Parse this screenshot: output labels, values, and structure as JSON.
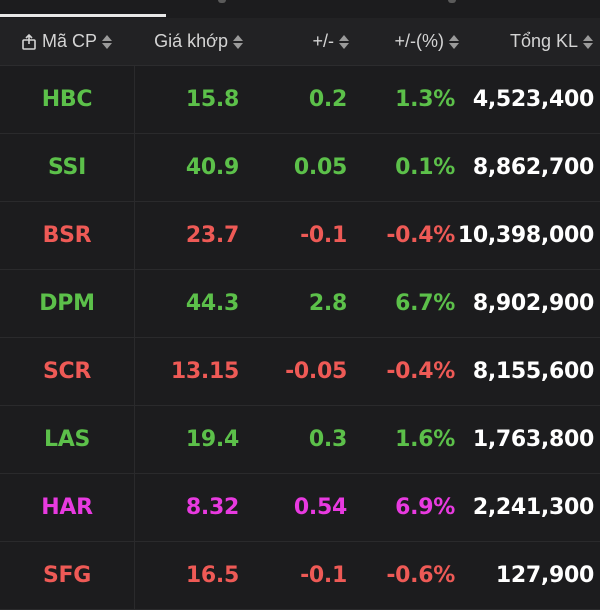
{
  "colors": {
    "up": "#5cc04a",
    "down": "#ee5a56",
    "ceiling": "#e83ae0",
    "volume": "#ffffff",
    "background": "#1c1c1e",
    "header_bg": "#222224"
  },
  "header": {
    "symbol_label": "Mã CP",
    "price_label": "Giá khớp",
    "change_label": "+/-",
    "pct_label": "+/-(%)",
    "volume_label": "Tổng KL",
    "symbol_icon": "share-icon",
    "sort_icon": "sort-icon"
  },
  "rows": [
    {
      "symbol": "HBC",
      "price": "15.8",
      "change": "0.2",
      "pct": "1.3%",
      "volume": "4,523,400",
      "status": "up"
    },
    {
      "symbol": "SSI",
      "price": "40.9",
      "change": "0.05",
      "pct": "0.1%",
      "volume": "8,862,700",
      "status": "up"
    },
    {
      "symbol": "BSR",
      "price": "23.7",
      "change": "-0.1",
      "pct": "-0.4%",
      "volume": "10,398,000",
      "status": "down"
    },
    {
      "symbol": "DPM",
      "price": "44.3",
      "change": "2.8",
      "pct": "6.7%",
      "volume": "8,902,900",
      "status": "up"
    },
    {
      "symbol": "SCR",
      "price": "13.15",
      "change": "-0.05",
      "pct": "-0.4%",
      "volume": "8,155,600",
      "status": "down"
    },
    {
      "symbol": "LAS",
      "price": "19.4",
      "change": "0.3",
      "pct": "1.6%",
      "volume": "1,763,800",
      "status": "up"
    },
    {
      "symbol": "HAR",
      "price": "8.32",
      "change": "0.54",
      "pct": "6.9%",
      "volume": "2,241,300",
      "status": "ceiling"
    },
    {
      "symbol": "SFG",
      "price": "16.5",
      "change": "-0.1",
      "pct": "-0.6%",
      "volume": "127,900",
      "status": "down"
    }
  ]
}
